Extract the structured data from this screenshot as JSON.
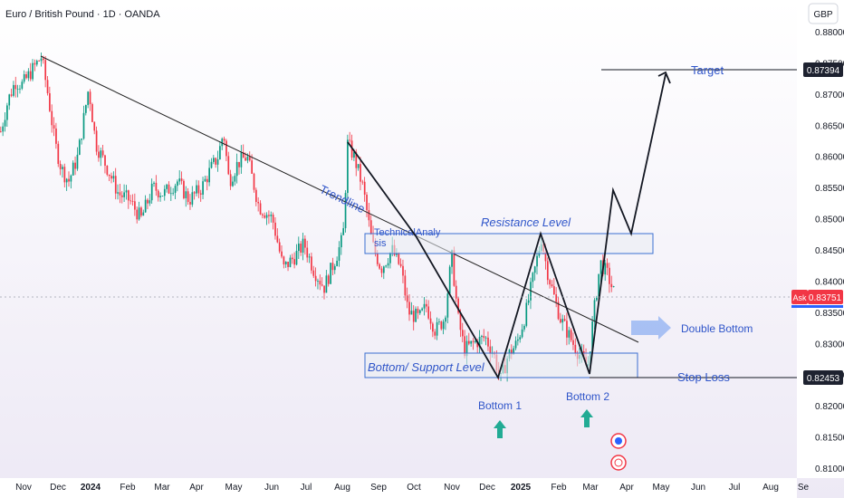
{
  "header": {
    "symbol_title": "Euro / British Pound · 1D · OANDA"
  },
  "currency_button": "GBP",
  "colors": {
    "bg_top": "#ffffff",
    "bg_bottom": "#ede9f5",
    "up": "#089981",
    "down": "#f23645",
    "drawing_blue": "#2f55c9",
    "box_fill": "#e9edf2",
    "price_tag_dark": "#1e2230"
  },
  "chart_data": {
    "type": "candlestick",
    "title": "Euro / British Pound · 1D · OANDA",
    "ylim": [
      0.81,
      0.88
    ],
    "y_ticks": [
      "0.88000",
      "0.87500",
      "0.87000",
      "0.86500",
      "0.86000",
      "0.85500",
      "0.85000",
      "0.84500",
      "0.84000",
      "0.83500",
      "0.83000",
      "0.82500",
      "0.82000",
      "0.81500",
      "0.81000"
    ],
    "x_ticks": [
      "Nov",
      "Dec",
      "2024",
      "Feb",
      "Mar",
      "Apr",
      "May",
      "Jun",
      "Jul",
      "Aug",
      "Sep",
      "Oct",
      "Nov",
      "Dec",
      "2025",
      "Feb",
      "Mar",
      "Apr",
      "May",
      "Jun",
      "Jul",
      "Aug",
      "Se"
    ],
    "price_path": [
      [
        0,
        0.864
      ],
      [
        8,
        0.869
      ],
      [
        16,
        0.872
      ],
      [
        24,
        0.8715
      ],
      [
        33,
        0.8735
      ],
      [
        45,
        0.876
      ],
      [
        52,
        0.87
      ],
      [
        60,
        0.862
      ],
      [
        67,
        0.858
      ],
      [
        75,
        0.856
      ],
      [
        85,
        0.86
      ],
      [
        97,
        0.871
      ],
      [
        105,
        0.862
      ],
      [
        118,
        0.858
      ],
      [
        130,
        0.854
      ],
      [
        142,
        0.853
      ],
      [
        155,
        0.85
      ],
      [
        168,
        0.855
      ],
      [
        180,
        0.854
      ],
      [
        195,
        0.856
      ],
      [
        208,
        0.853
      ],
      [
        222,
        0.855
      ],
      [
        232,
        0.858
      ],
      [
        240,
        0.86
      ],
      [
        246,
        0.864
      ],
      [
        252,
        0.856
      ],
      [
        262,
        0.859
      ],
      [
        272,
        0.86
      ],
      [
        285,
        0.852
      ],
      [
        300,
        0.85
      ],
      [
        312,
        0.842
      ],
      [
        325,
        0.844
      ],
      [
        335,
        0.846
      ],
      [
        345,
        0.842
      ],
      [
        357,
        0.839
      ],
      [
        368,
        0.843
      ],
      [
        378,
        0.847
      ],
      [
        383,
        0.862
      ],
      [
        390,
        0.86
      ],
      [
        400,
        0.855
      ],
      [
        410,
        0.846
      ],
      [
        420,
        0.842
      ],
      [
        432,
        0.845
      ],
      [
        442,
        0.842
      ],
      [
        450,
        0.835
      ],
      [
        462,
        0.834
      ],
      [
        470,
        0.836
      ],
      [
        480,
        0.832
      ],
      [
        490,
        0.834
      ],
      [
        498,
        0.844
      ],
      [
        505,
        0.834
      ],
      [
        512,
        0.829
      ],
      [
        522,
        0.83
      ],
      [
        535,
        0.831
      ],
      [
        545,
        0.828
      ],
      [
        552,
        0.824
      ],
      [
        560,
        0.828
      ],
      [
        570,
        0.83
      ],
      [
        580,
        0.835
      ],
      [
        590,
        0.842
      ],
      [
        597,
        0.847
      ],
      [
        603,
        0.842
      ],
      [
        610,
        0.838
      ],
      [
        618,
        0.834
      ],
      [
        625,
        0.832
      ],
      [
        632,
        0.83
      ],
      [
        640,
        0.828
      ],
      [
        648,
        0.826
      ],
      [
        655,
        0.835
      ],
      [
        662,
        0.843
      ],
      [
        670,
        0.841
      ],
      [
        678,
        0.8378
      ]
    ],
    "series": [
      {
        "name": "",
        "values": []
      }
    ],
    "annotations": {
      "target_label": "Target",
      "target_price": "0.87394",
      "stop_label": "Stop Loss",
      "stop_price": "0.82453",
      "resistance_label": "Resistance Level",
      "support_label": "Bottom/ Support Level",
      "trendline_label": "Trendline",
      "note_label": "TechnicalAnaly sis",
      "bottom1_label": "Bottom 1",
      "bottom2_label": "Bottom 2",
      "pattern_label": "Double Bottom",
      "ask_label": "Ask",
      "ask_price": "0.83751"
    },
    "grid": false,
    "legend": "none"
  }
}
